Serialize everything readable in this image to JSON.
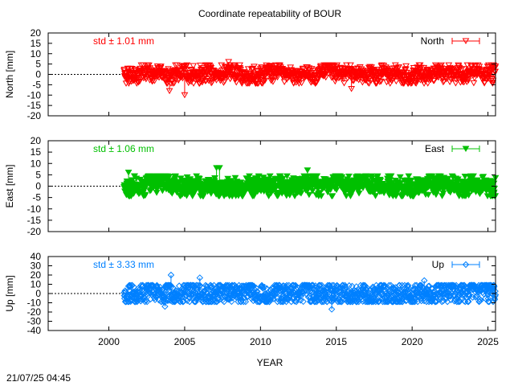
{
  "chart_data": {
    "type": "scatter",
    "title": "Coordinate repeatability of BOUR",
    "xlabel": "YEAR",
    "timestamp": "21/07/25 04:45",
    "x_range": [
      1996,
      2025.5
    ],
    "x_ticks": [
      "2000",
      "2005",
      "2010",
      "2015",
      "2020",
      "2025"
    ],
    "x_tick_values": [
      2000,
      2005,
      2010,
      2015,
      2020,
      2025
    ],
    "data_start_year": 2001,
    "data_end_year": 2025.5,
    "panels": [
      {
        "name": "North",
        "ylabel": "North [mm]",
        "ylim": [
          -20,
          20
        ],
        "yticks": [
          "20",
          "15",
          "10",
          "5",
          "0",
          "-5",
          "-10",
          "-15",
          "-20"
        ],
        "ytick_values": [
          20,
          15,
          10,
          5,
          0,
          -5,
          -10,
          -15,
          -20
        ],
        "std_text": "std ± 1.01 mm",
        "legend": "North",
        "color": "#ff0000",
        "marker": "triangle-down-open",
        "std": 1.01,
        "outliers": [
          [
            2004.0,
            -8
          ],
          [
            2005.0,
            -10
          ],
          [
            2007.9,
            6
          ],
          [
            2016.0,
            -7
          ],
          [
            2019.6,
            4
          ]
        ]
      },
      {
        "name": "East",
        "ylabel": "East [mm]",
        "ylim": [
          -20,
          20
        ],
        "yticks": [
          "20",
          "15",
          "10",
          "5",
          "0",
          "-5",
          "-10",
          "-15",
          "-20"
        ],
        "ytick_values": [
          20,
          15,
          10,
          5,
          0,
          -5,
          -10,
          -15,
          -20
        ],
        "std_text": "std ± 1.06 mm",
        "legend": "East",
        "color": "#00c000",
        "marker": "triangle-down-filled",
        "std": 1.06,
        "outliers": [
          [
            2001.3,
            6
          ],
          [
            2007.1,
            8
          ],
          [
            2007.3,
            8
          ],
          [
            2013.1,
            7
          ],
          [
            2018.5,
            -4
          ]
        ]
      },
      {
        "name": "Up",
        "ylabel": "Up [mm]",
        "ylim": [
          -40,
          40
        ],
        "yticks": [
          "40",
          "30",
          "20",
          "10",
          "0",
          "-10",
          "-20",
          "-30",
          "-40"
        ],
        "ytick_values": [
          40,
          30,
          20,
          10,
          0,
          -10,
          -20,
          -30,
          -40
        ],
        "std_text": "std ± 3.33 mm",
        "legend": "Up",
        "color": "#0080ff",
        "marker": "diamond-open",
        "std": 3.33,
        "outliers": [
          [
            2004.1,
            20
          ],
          [
            2006.0,
            17
          ],
          [
            2014.7,
            -17
          ],
          [
            2020.8,
            14
          ],
          [
            2003.7,
            -14
          ]
        ]
      }
    ]
  }
}
